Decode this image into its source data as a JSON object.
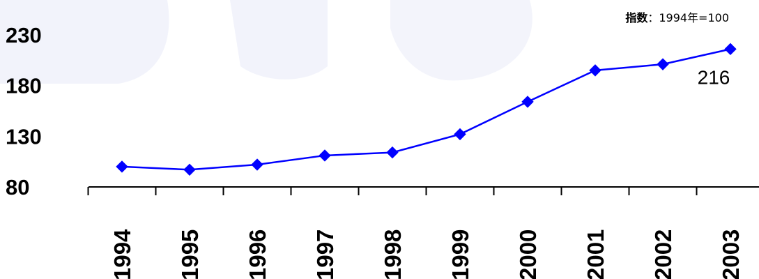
{
  "chart_data": {
    "type": "line",
    "title": "",
    "note": "指数：1994年=100",
    "xlabel": "",
    "ylabel": "",
    "categories": [
      "1994",
      "1995",
      "1996",
      "1997",
      "1998",
      "1999",
      "2000",
      "2001",
      "2002",
      "2003"
    ],
    "series": [
      {
        "name": "",
        "values": [
          100,
          97,
          102,
          111,
          114,
          132,
          164,
          195,
          201,
          216
        ],
        "color": "#0000ff",
        "marker": "diamond"
      }
    ],
    "y_ticks": [
      "230",
      "180",
      "130",
      "80"
    ],
    "y_tick_values": [
      230,
      180,
      130,
      80
    ],
    "ylim": [
      80,
      230
    ],
    "grid": false,
    "legend": "none",
    "annotations": [
      {
        "text": "216",
        "category": "2003",
        "value": 216
      }
    ],
    "watermark_color": "#e8e9f7"
  }
}
